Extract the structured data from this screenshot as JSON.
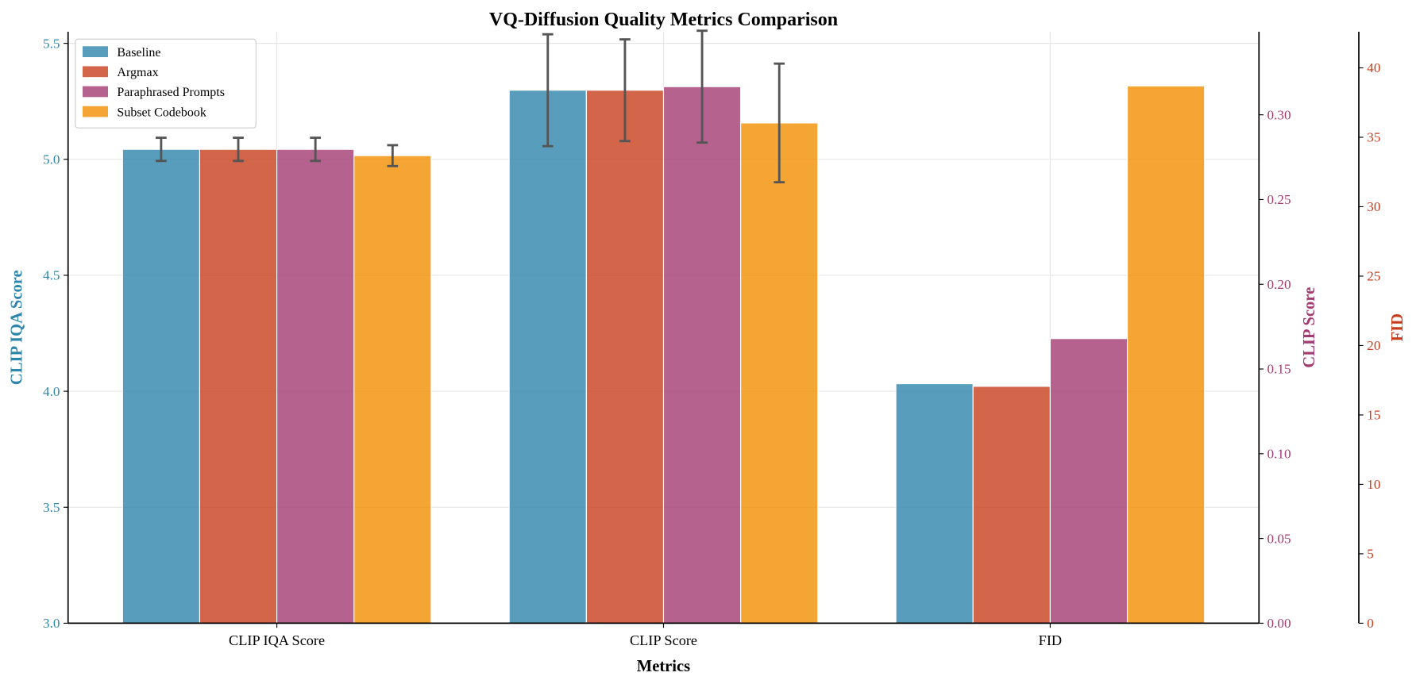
{
  "chart_data": {
    "type": "bar",
    "title": "VQ-Diffusion Quality Metrics Comparison",
    "xlabel": "Metrics",
    "categories": [
      "CLIP IQA Score",
      "CLIP Score",
      "FID"
    ],
    "axes": [
      {
        "label": "CLIP IQA Score",
        "side": "left",
        "color": "#2E86AB",
        "ylim": [
          3.0,
          5.55
        ],
        "ticks": [
          "3.0",
          "3.5",
          "4.0",
          "4.5",
          "5.0",
          "5.5"
        ],
        "category": "CLIP IQA Score"
      },
      {
        "label": "CLIP Score",
        "side": "right",
        "color": "#A23B72",
        "ylim": [
          0,
          0.349
        ],
        "ticks": [
          "0.00",
          "0.05",
          "0.10",
          "0.15",
          "0.20",
          "0.25",
          "0.30"
        ],
        "category": "CLIP Score"
      },
      {
        "label": "FID",
        "side": "right-outer",
        "color": "#C73E1D",
        "ylim": [
          0,
          42.6
        ],
        "ticks": [
          "0",
          "5",
          "10",
          "15",
          "20",
          "25",
          "30",
          "35",
          "40"
        ],
        "category": "FID"
      }
    ],
    "series": [
      {
        "name": "Baseline",
        "color": "#2E86AB",
        "values": [
          5.043,
          0.3145,
          17.25
        ],
        "errors": [
          0.05,
          0.033,
          null
        ]
      },
      {
        "name": "Argmax",
        "color": "#C73E1D",
        "values": [
          5.043,
          0.3145,
          17.06
        ],
        "errors": [
          0.05,
          0.03,
          null
        ]
      },
      {
        "name": "Paraphrased Prompts",
        "color": "#A23B72",
        "values": [
          5.043,
          0.3166,
          20.5
        ],
        "errors": [
          0.05,
          0.033,
          null
        ]
      },
      {
        "name": "Subset Codebook",
        "color": "#F18F01",
        "values": [
          5.016,
          0.2952,
          38.7
        ],
        "errors": [
          0.045,
          0.035,
          null
        ]
      }
    ],
    "grid": true,
    "legend": "top-left"
  }
}
